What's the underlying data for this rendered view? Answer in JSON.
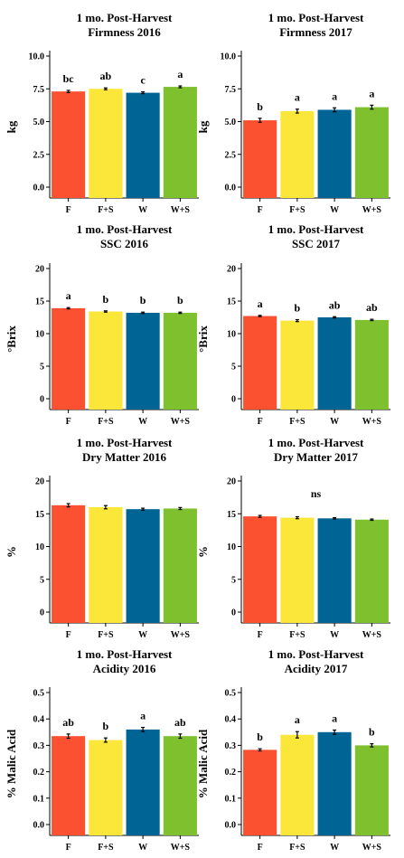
{
  "chart_data": [
    {
      "type": "bar",
      "title": [
        "1 mo. Post-Harvest",
        "Firmness 2016"
      ],
      "ylabel": "kg",
      "categories": [
        "F",
        "F+S",
        "W",
        "W+S"
      ],
      "values": [
        7.3,
        7.5,
        7.2,
        7.65
      ],
      "errors": [
        0.08,
        0.07,
        0.07,
        0.07
      ],
      "significance": [
        "bc",
        "ab",
        "c",
        "a"
      ],
      "ylim": [
        0,
        10
      ],
      "yticks": [
        "0.0",
        "2.5",
        "5.0",
        "7.5",
        "10.0"
      ]
    },
    {
      "type": "bar",
      "title": [
        "1 mo. Post-Harvest",
        "Firmness 2017"
      ],
      "ylabel": "kg",
      "categories": [
        "F",
        "F+S",
        "W",
        "W+S"
      ],
      "values": [
        5.1,
        5.8,
        5.9,
        6.1
      ],
      "errors": [
        0.15,
        0.15,
        0.15,
        0.15
      ],
      "significance": [
        "b",
        "a",
        "a",
        "a"
      ],
      "ylim": [
        0,
        10
      ],
      "yticks": [
        "0.0",
        "2.5",
        "5.0",
        "7.5",
        "10.0"
      ]
    },
    {
      "type": "bar",
      "title": [
        "1 mo. Post-Harvest",
        "SSC 2016"
      ],
      "ylabel": "°Brix",
      "categories": [
        "F",
        "F+S",
        "W",
        "W+S"
      ],
      "values": [
        13.9,
        13.4,
        13.2,
        13.2
      ],
      "errors": [
        0.1,
        0.1,
        0.1,
        0.1
      ],
      "significance": [
        "a",
        "b",
        "b",
        "b"
      ],
      "ylim": [
        0,
        20
      ],
      "yticks": [
        "0",
        "5",
        "10",
        "15",
        "20"
      ]
    },
    {
      "type": "bar",
      "title": [
        "1 mo. Post-Harvest",
        "SSC 2017"
      ],
      "ylabel": "°Brix",
      "categories": [
        "F",
        "F+S",
        "W",
        "W+S"
      ],
      "values": [
        12.7,
        12.0,
        12.5,
        12.1
      ],
      "errors": [
        0.1,
        0.15,
        0.1,
        0.1
      ],
      "significance": [
        "a",
        "b",
        "ab",
        "ab"
      ],
      "ylim": [
        0,
        20
      ],
      "yticks": [
        "0",
        "5",
        "10",
        "15",
        "20"
      ]
    },
    {
      "type": "bar",
      "title": [
        "1 mo. Post-Harvest",
        "Dry Matter 2016"
      ],
      "ylabel": "%",
      "categories": [
        "F",
        "F+S",
        "W",
        "W+S"
      ],
      "values": [
        16.3,
        16.0,
        15.7,
        15.8
      ],
      "errors": [
        0.25,
        0.25,
        0.15,
        0.15
      ],
      "significance": [],
      "ylim": [
        0,
        20
      ],
      "yticks": [
        "0",
        "5",
        "10",
        "15",
        "20"
      ]
    },
    {
      "type": "bar",
      "title": [
        "1 mo. Post-Harvest",
        "Dry Matter 2017"
      ],
      "ylabel": "%",
      "categories": [
        "F",
        "F+S",
        "W",
        "W+S"
      ],
      "values": [
        14.6,
        14.4,
        14.3,
        14.1
      ],
      "errors": [
        0.15,
        0.15,
        0.1,
        0.1
      ],
      "significance": [],
      "annotation": "ns",
      "annotation_y": 17.5,
      "ylim": [
        0,
        20
      ],
      "yticks": [
        "0",
        "5",
        "10",
        "15",
        "20"
      ]
    },
    {
      "type": "bar",
      "title": [
        "1 mo. Post-Harvest",
        "Acidity 2016"
      ],
      "ylabel": "% Malic Acid",
      "categories": [
        "F",
        "F+S",
        "W",
        "W+S"
      ],
      "values": [
        0.335,
        0.32,
        0.36,
        0.335
      ],
      "errors": [
        0.008,
        0.008,
        0.008,
        0.008
      ],
      "significance": [
        "ab",
        "b",
        "a",
        "ab"
      ],
      "ylim": [
        0,
        0.5
      ],
      "yticks": [
        "0.0",
        "0.1",
        "0.2",
        "0.3",
        "0.4",
        "0.5"
      ]
    },
    {
      "type": "bar",
      "title": [
        "1 mo. Post-Harvest",
        "Acidity 2017"
      ],
      "ylabel": "% Malic Acid",
      "categories": [
        "F",
        "F+S",
        "W",
        "W+S"
      ],
      "values": [
        0.283,
        0.34,
        0.35,
        0.3
      ],
      "errors": [
        0.004,
        0.012,
        0.008,
        0.006
      ],
      "significance": [
        "b",
        "a",
        "a",
        "b"
      ],
      "ylim": [
        0,
        0.5
      ],
      "yticks": [
        "0.0",
        "0.1",
        "0.2",
        "0.3",
        "0.4",
        "0.5"
      ]
    }
  ],
  "colors": {
    "F": "#fc5130",
    "F+S": "#fbe73a",
    "W": "#006494",
    "W+S": "#7fc02f"
  }
}
